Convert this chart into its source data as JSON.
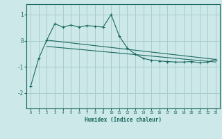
{
  "xlabel": "Humidex (Indice chaleur)",
  "bg_color": "#cce8e8",
  "line_color": "#1a6860",
  "grid_color": "#aacccc",
  "xlim": [
    -0.5,
    23.5
  ],
  "ylim": [
    -2.6,
    1.4
  ],
  "yticks": [
    -2,
    -1,
    0,
    1
  ],
  "xticks": [
    0,
    1,
    2,
    3,
    4,
    5,
    6,
    7,
    8,
    9,
    10,
    11,
    12,
    13,
    14,
    15,
    16,
    17,
    18,
    19,
    20,
    21,
    22,
    23
  ],
  "series1_x": [
    0,
    1,
    2,
    3,
    4,
    5,
    6,
    7,
    8,
    9,
    10,
    11,
    12,
    13,
    14,
    15,
    16,
    17,
    18,
    19,
    20,
    21,
    22,
    23
  ],
  "series1_y": [
    -1.75,
    -0.68,
    0.02,
    0.65,
    0.52,
    0.6,
    0.52,
    0.58,
    0.55,
    0.52,
    1.0,
    0.18,
    -0.28,
    -0.52,
    -0.68,
    -0.75,
    -0.78,
    -0.8,
    -0.82,
    -0.82,
    -0.8,
    -0.85,
    -0.82,
    -0.72
  ],
  "series2_x": [
    2,
    23
  ],
  "series2_y": [
    0.02,
    -0.72
  ],
  "series3_x": [
    2,
    23
  ],
  "series3_y": [
    -0.22,
    -0.82
  ]
}
